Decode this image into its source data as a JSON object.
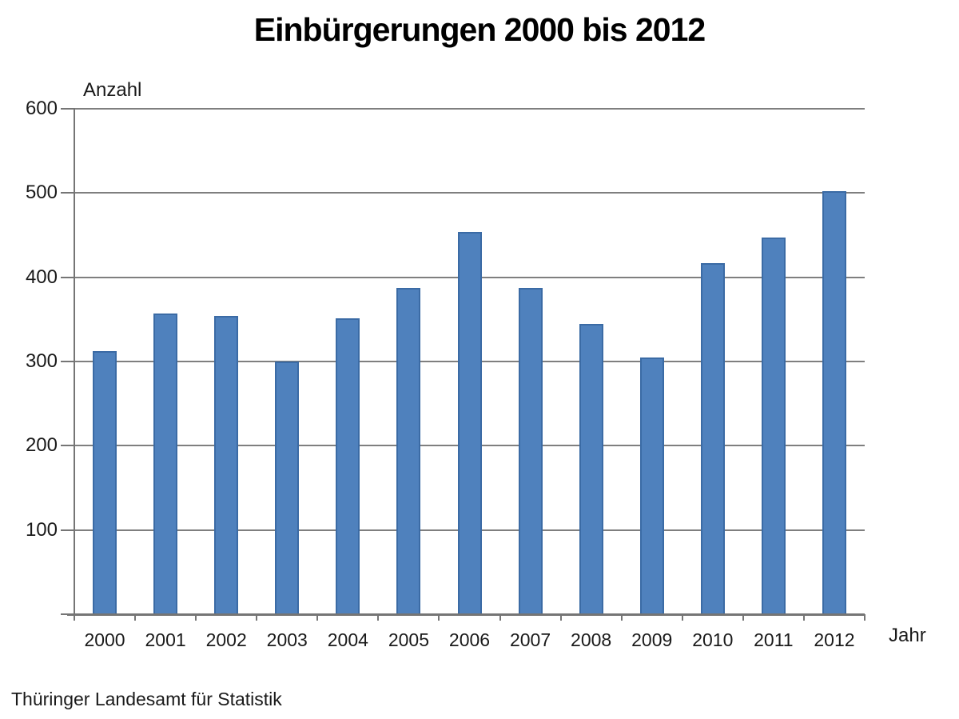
{
  "chart_data": {
    "type": "bar",
    "title": "Einbürgerungen 2000 bis 2012",
    "ylabel": "Anzahl",
    "xlabel": "Jahr",
    "source": "Thüringer Landesamt für Statistik",
    "categories": [
      "2000",
      "2001",
      "2002",
      "2003",
      "2004",
      "2005",
      "2006",
      "2007",
      "2008",
      "2009",
      "2010",
      "2011",
      "2012"
    ],
    "values": [
      312,
      357,
      354,
      300,
      351,
      387,
      454,
      387,
      345,
      305,
      417,
      447,
      502
    ],
    "ylim": [
      0,
      600
    ],
    "yticks": [
      100,
      200,
      300,
      400,
      500,
      600
    ],
    "grid": true,
    "legend_position": "none",
    "colors": {
      "bar_fill": "#4f81bd",
      "bar_border": "#3b6ba5",
      "gridline": "#7f7f7f",
      "axis": "#757575",
      "text": "#1a1a1a",
      "title_text": "#000000",
      "background": "#ffffff"
    }
  }
}
